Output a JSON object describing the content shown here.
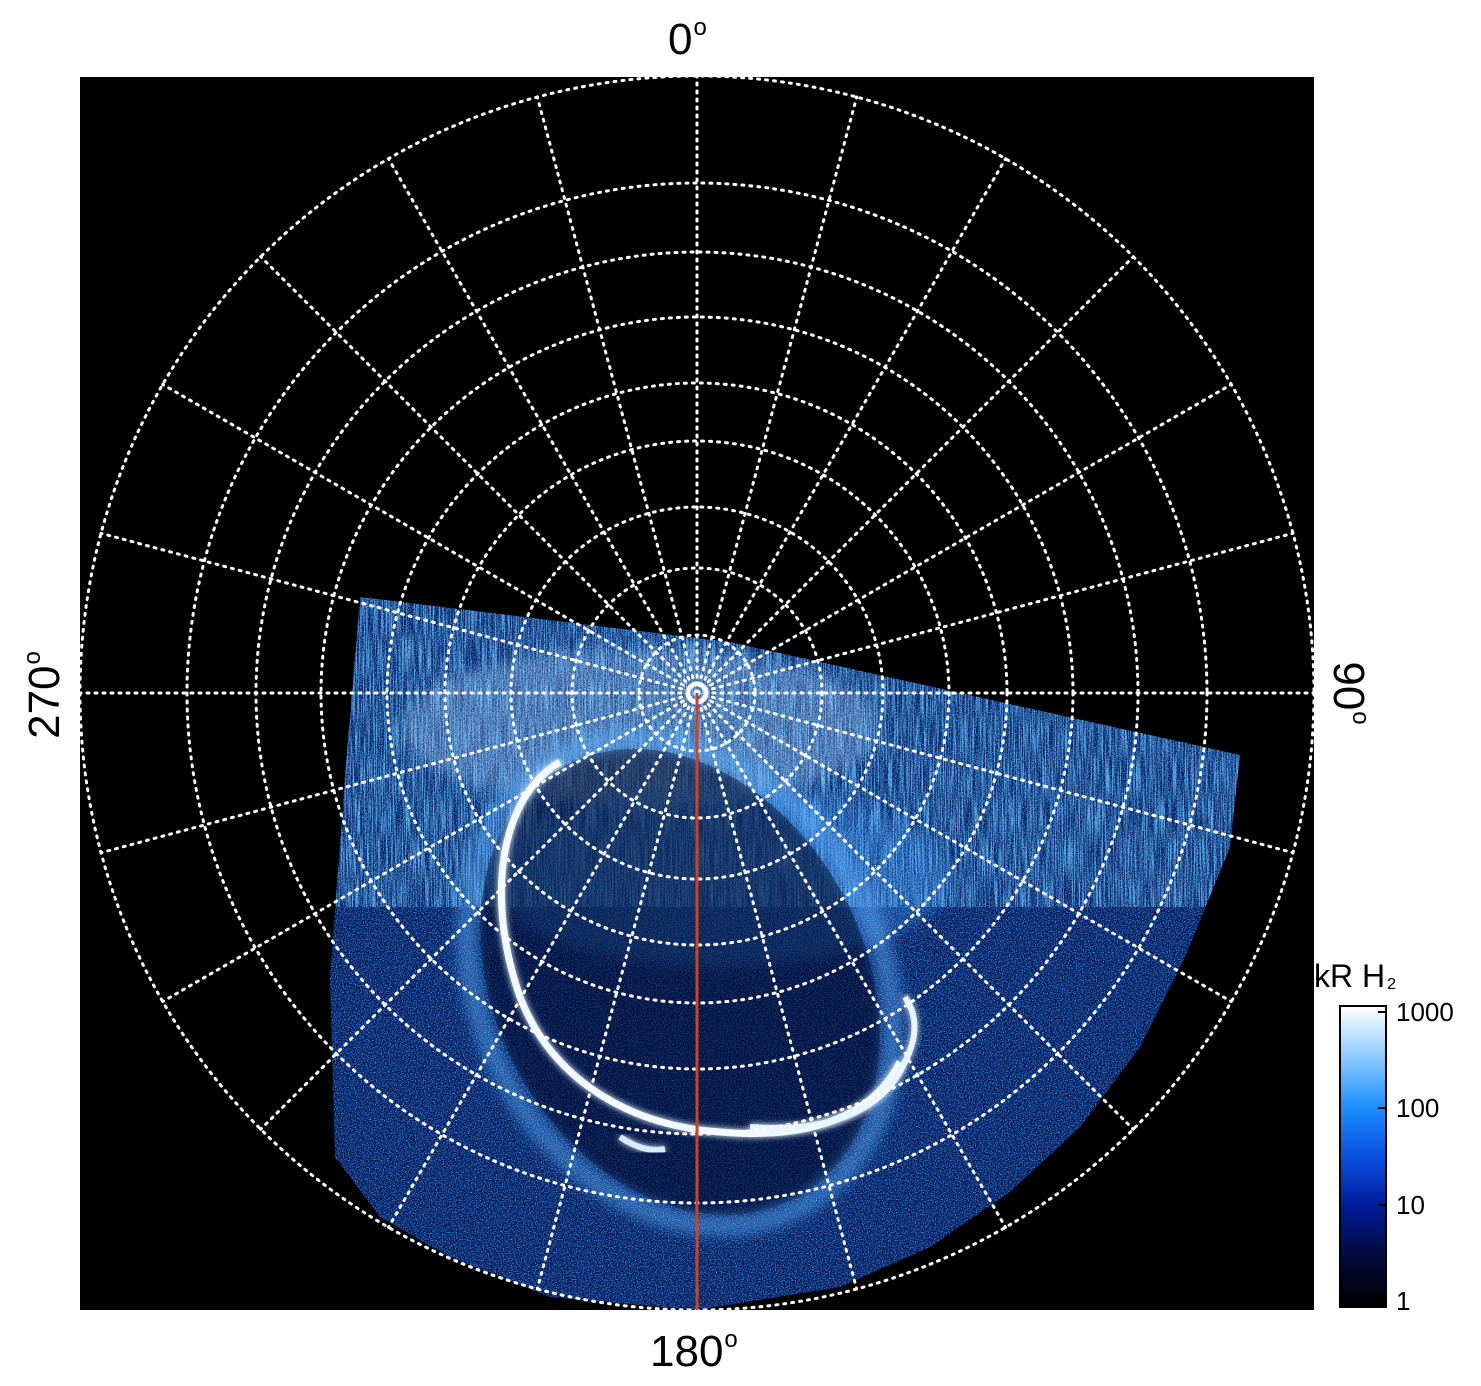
{
  "axis_labels": {
    "top": "0",
    "right": "90",
    "bottom": "180",
    "left": "270",
    "degree_symbol": "o"
  },
  "colorbar": {
    "title": "kR H",
    "title_subscript": "2",
    "ticks": [
      {
        "label": "1000",
        "value": 1000
      },
      {
        "label": "100",
        "value": 100
      },
      {
        "label": "10",
        "value": 10
      },
      {
        "label": "1",
        "value": 1
      }
    ],
    "scale": "log",
    "range": [
      1,
      1000
    ],
    "gradient_colors": [
      "#000000",
      "#000a3a",
      "#001a9a",
      "#0a50e0",
      "#1e90ff",
      "#8ccaff",
      "#ffffff"
    ]
  },
  "projection": {
    "type": "polar",
    "grid": true,
    "grid_style": "dotted white",
    "meridian_step_deg": 15
  },
  "colors": {
    "background": "#000000",
    "grid": "#ffffff",
    "meridian_line": "#d2401c",
    "aurora_main": "#eef7ff",
    "emission": "#1e6fff"
  }
}
